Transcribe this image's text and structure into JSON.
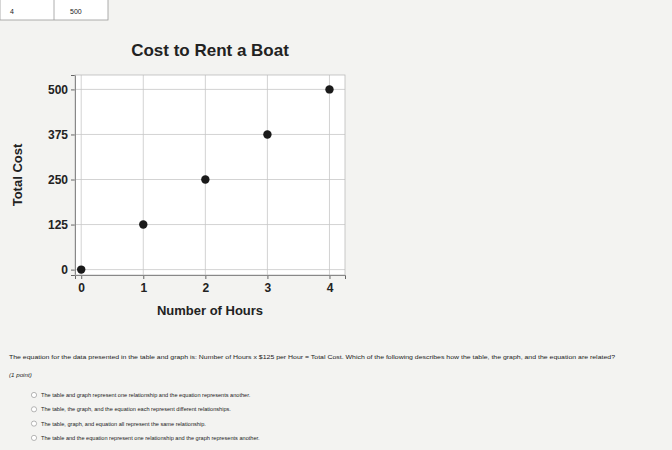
{
  "chart_data": {
    "type": "scatter",
    "title": "Cost to Rent a Boat",
    "x_label": "Number of Hours",
    "y_label": "Total Cost",
    "x": [
      0,
      1,
      2,
      3,
      4
    ],
    "values": [
      0,
      125,
      250,
      375,
      500
    ],
    "color": "#1a1a1a",
    "marker": "circle",
    "xlim": [
      -0.1,
      4.25
    ],
    "ylim": [
      -15,
      540
    ],
    "xticks": [
      0,
      1,
      2,
      3,
      4
    ],
    "yticks": [
      0,
      125,
      250,
      375,
      500
    ],
    "grid": true
  },
  "table": {
    "rows": [
      [
        4,
        500
      ]
    ]
  },
  "question": {
    "text": "The equation for the data presented in the table and graph is: Number of Hours x $125 per Hour = Total Cost. Which of the following describes how the table, the graph, and the equation are related?",
    "points": "(1 point)",
    "options": [
      "The table and graph represent one relationship and the equation represents another.",
      "The table, the graph, and the equation each represent different relationships.",
      "The table, graph, and equation all represent the same relationship.",
      "The table and the equation represent one relationship and the graph represents another."
    ]
  }
}
